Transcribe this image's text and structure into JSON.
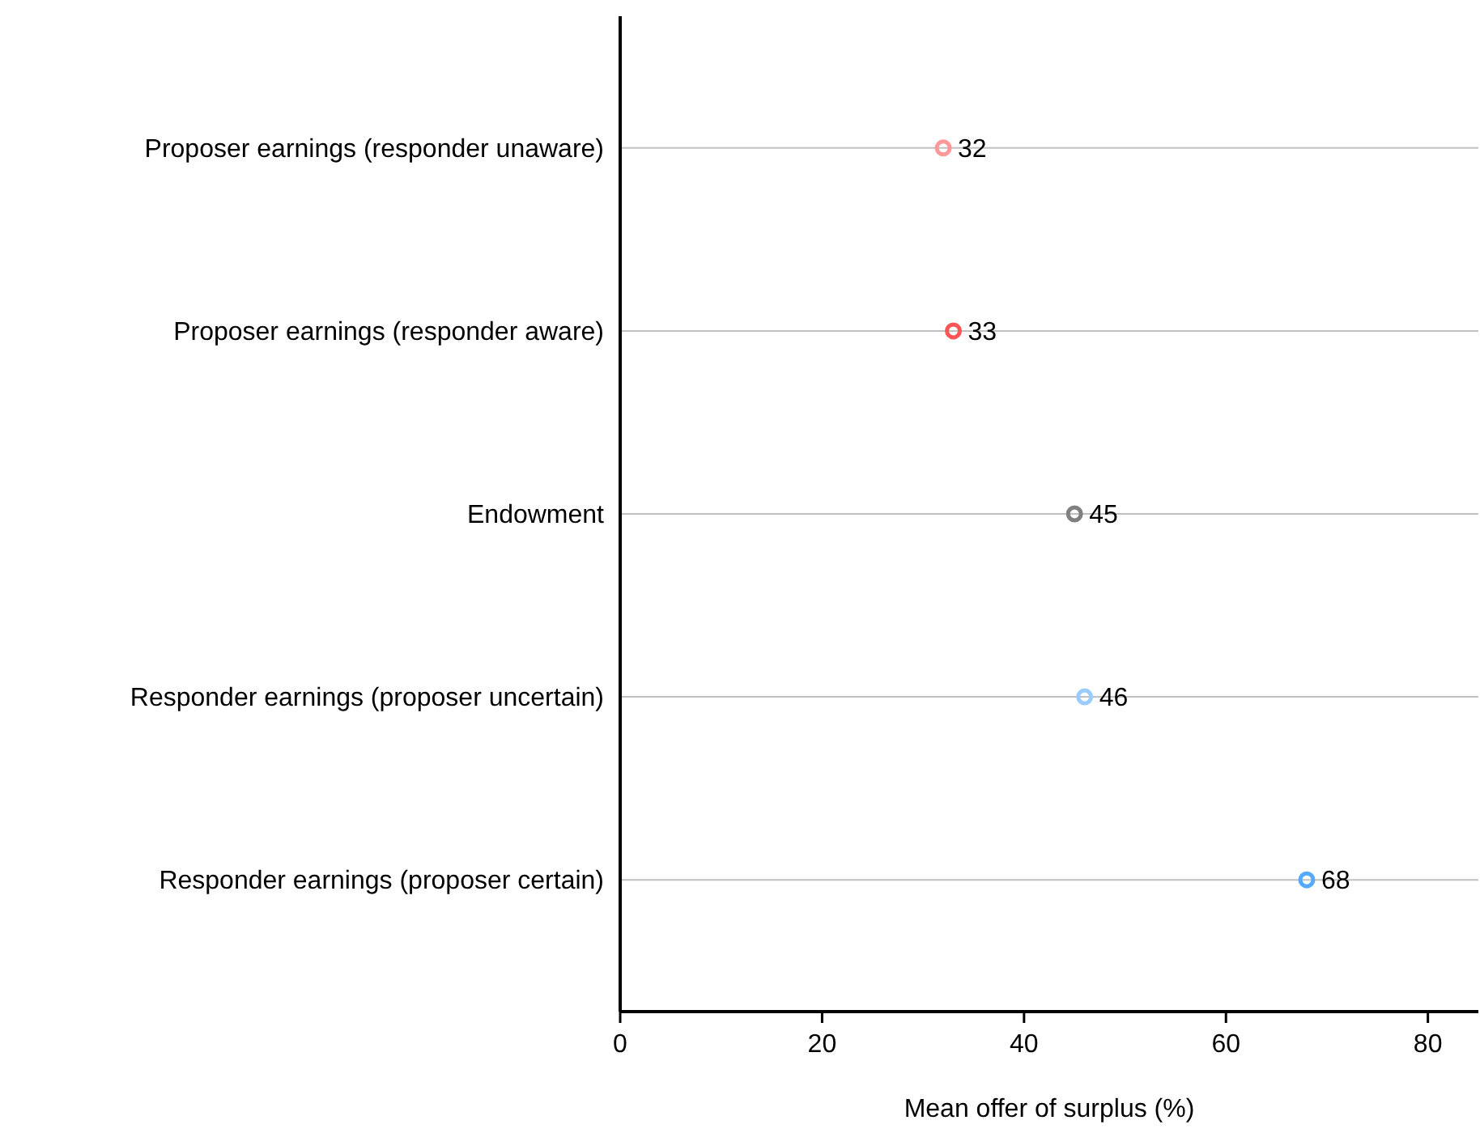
{
  "chart_data": {
    "type": "scatter",
    "orientation": "horizontal",
    "xlabel": "Mean offer of surplus (%)",
    "categories": [
      "Proposer earnings (responder unaware)",
      "Proposer earnings (responder aware)",
      "Endowment",
      "Responder earnings (proposer uncertain)",
      "Responder earnings (proposer certain)"
    ],
    "values": [
      32,
      33,
      45,
      46,
      68
    ],
    "colors": [
      "#ff9999",
      "#ff5555",
      "#808080",
      "#99ccff",
      "#55aaff"
    ],
    "xlim": [
      0,
      85
    ],
    "xticks": [
      0,
      20,
      40,
      60,
      80
    ],
    "grid": "y",
    "marker": "circle",
    "data_labels": true
  }
}
